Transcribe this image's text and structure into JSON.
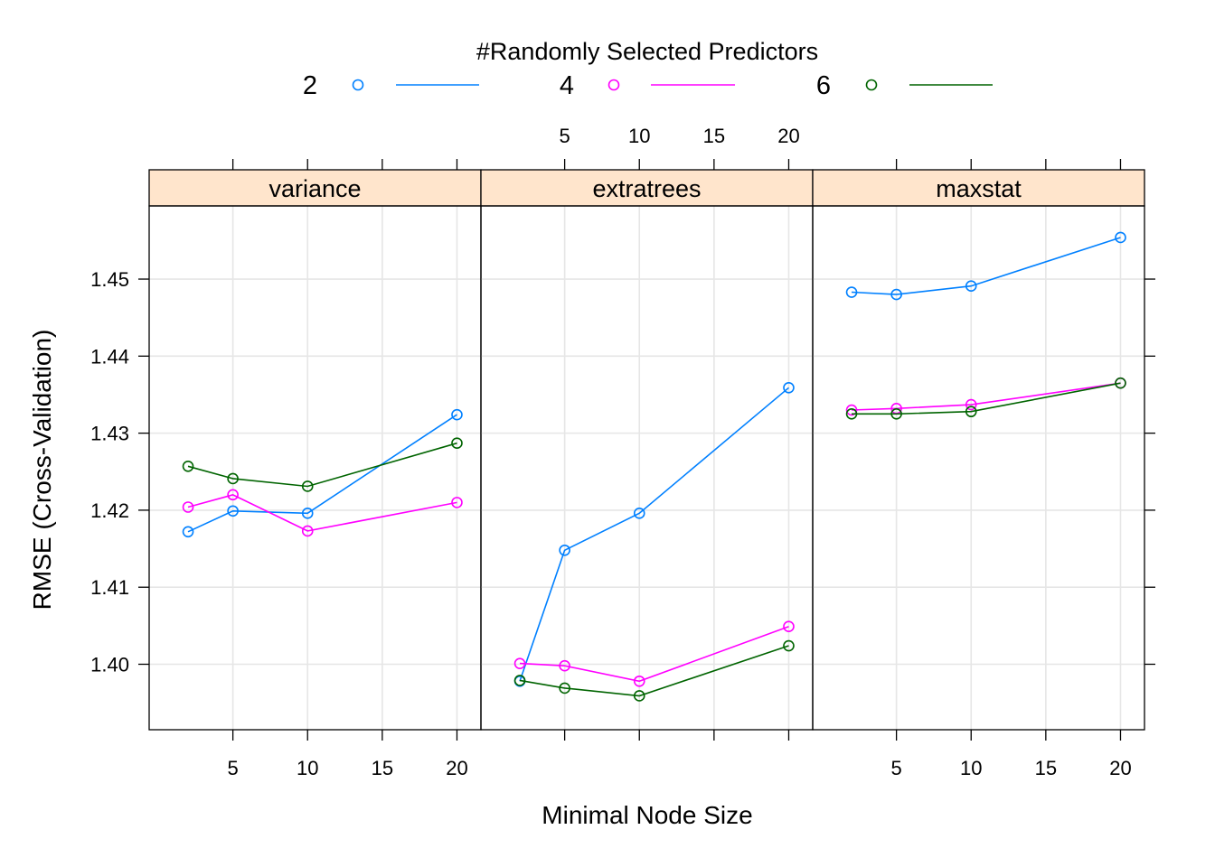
{
  "chart_data": {
    "type": "line",
    "legend": {
      "title": "#Randomly Selected Predictors",
      "placement": "top"
    },
    "xlabel": "Minimal Node Size",
    "ylabel": "RMSE (Cross-Validation)",
    "x": [
      2,
      5,
      10,
      20
    ],
    "x_ticks": [
      "5",
      "10",
      "15",
      "20"
    ],
    "y_ticks": [
      "1.40",
      "1.41",
      "1.42",
      "1.43",
      "1.44",
      "1.45"
    ],
    "xlim": [
      0,
      21
    ],
    "ylim": [
      1.3915,
      1.4595
    ],
    "grid": true,
    "series_styles": [
      {
        "name": "2",
        "color": "#0080ff"
      },
      {
        "name": "4",
        "color": "#ff00ff"
      },
      {
        "name": "6",
        "color": "#006400"
      }
    ],
    "panels": [
      {
        "title": "variance",
        "series": [
          {
            "name": "2",
            "values": [
              1.4172,
              1.4199,
              1.4196,
              1.4324
            ]
          },
          {
            "name": "4",
            "values": [
              1.4204,
              1.422,
              1.4173,
              1.421
            ]
          },
          {
            "name": "6",
            "values": [
              1.4257,
              1.4241,
              1.4231,
              1.4287
            ]
          }
        ]
      },
      {
        "title": "extratrees",
        "series": [
          {
            "name": "2",
            "values": [
              1.3978,
              1.4148,
              1.4196,
              1.4359
            ]
          },
          {
            "name": "4",
            "values": [
              1.4001,
              1.3998,
              1.3978,
              1.4049
            ]
          },
          {
            "name": "6",
            "values": [
              1.3979,
              1.3969,
              1.3959,
              1.4024
            ]
          }
        ]
      },
      {
        "title": "maxstat",
        "series": [
          {
            "name": "2",
            "values": [
              1.4483,
              1.448,
              1.4491,
              1.4554
            ]
          },
          {
            "name": "4",
            "values": [
              1.433,
              1.4332,
              1.4337,
              1.4365
            ]
          },
          {
            "name": "6",
            "values": [
              1.4325,
              1.4325,
              1.4328,
              1.4365
            ]
          }
        ]
      }
    ]
  }
}
